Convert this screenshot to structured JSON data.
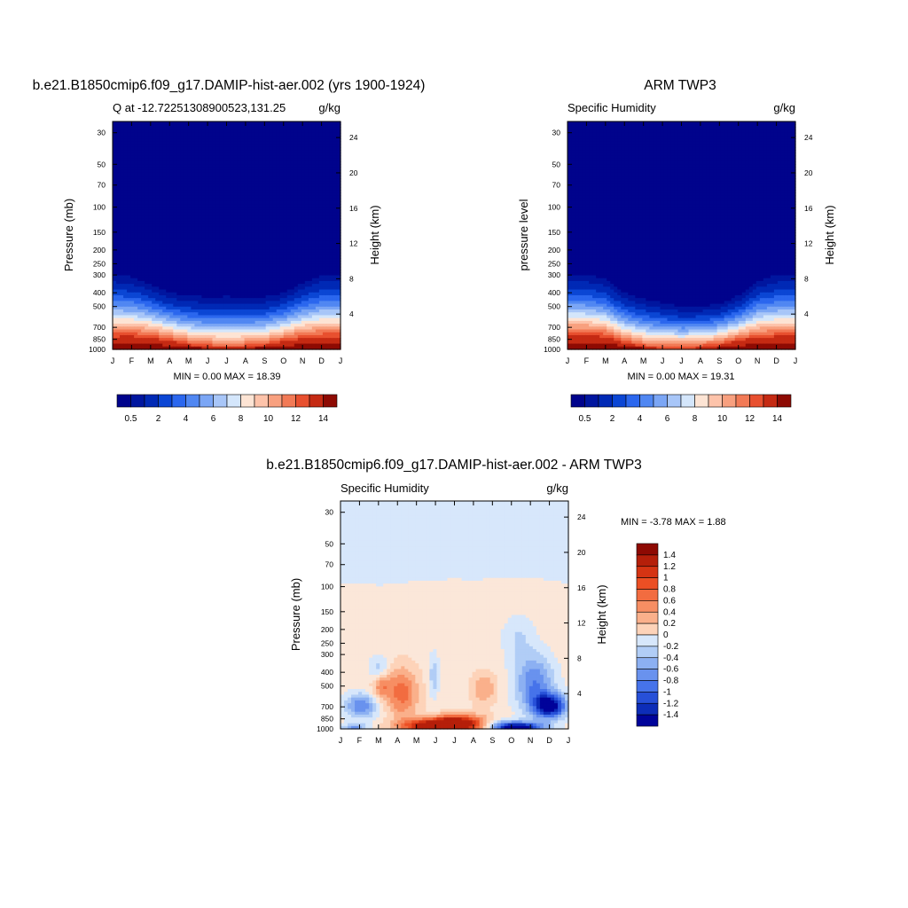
{
  "chart_data": [
    {
      "type": "contour",
      "title": "b.e21.B1850cmip6.f09_g17.DAMIP-hist-aer.002 (yrs 1900-1924)",
      "subtitle_left": "Q at -12.72251308900523,131.25",
      "subtitle_right": "g/kg",
      "ylabel": "Pressure (mb)",
      "ylabel_right": "Height (km)",
      "x_ticks": [
        "J",
        "F",
        "M",
        "A",
        "M",
        "J",
        "J",
        "A",
        "S",
        "O",
        "N",
        "D",
        "J"
      ],
      "p_ticks": [
        30,
        50,
        70,
        100,
        150,
        200,
        250,
        300,
        400,
        500,
        700,
        850,
        1000
      ],
      "z_ticks": [
        24,
        20,
        16,
        12,
        8,
        4
      ],
      "ylim": [
        1000,
        25
      ],
      "stats": "MIN =   0.00 MAX =  18.39",
      "levels": [
        0.5,
        1,
        2,
        3,
        4,
        5,
        6,
        7,
        8,
        9,
        10,
        11,
        12,
        13,
        14
      ],
      "colorbar_labels": [
        "0.5",
        "2",
        "4",
        "6",
        "8",
        "10",
        "12",
        "14"
      ],
      "profile_top_p": [
        300,
        310,
        350,
        400,
        420,
        430,
        425,
        430,
        430,
        400,
        340,
        300,
        300
      ],
      "profile_sfc_p": [
        820,
        820,
        840,
        880,
        930,
        960,
        975,
        965,
        940,
        890,
        850,
        830,
        820
      ]
    },
    {
      "type": "contour",
      "title": "ARM TWP3",
      "subtitle_left": "Specific Humidity",
      "subtitle_right": "g/kg",
      "ylabel": "pressure level",
      "ylabel_right": "Height (km)",
      "x_ticks": [
        "J",
        "F",
        "M",
        "A",
        "M",
        "J",
        "J",
        "A",
        "S",
        "O",
        "N",
        "D",
        "J"
      ],
      "p_ticks": [
        30,
        50,
        70,
        100,
        150,
        200,
        250,
        300,
        400,
        500,
        700,
        850,
        1000
      ],
      "z_ticks": [
        24,
        20,
        16,
        12,
        8,
        4
      ],
      "ylim": [
        1000,
        25
      ],
      "stats": "MIN =   0.00 MAX =  19.31",
      "levels": [
        0.5,
        1,
        2,
        3,
        4,
        5,
        6,
        7,
        8,
        9,
        10,
        11,
        12,
        13,
        14
      ],
      "colorbar_labels": [
        "0.5",
        "2",
        "4",
        "6",
        "8",
        "10",
        "12",
        "14"
      ],
      "profile_top_p": [
        300,
        300,
        320,
        400,
        440,
        470,
        500,
        500,
        480,
        420,
        330,
        300,
        300
      ],
      "profile_sfc_p": [
        800,
        800,
        820,
        900,
        960,
        985,
        995,
        980,
        950,
        880,
        830,
        810,
        800
      ]
    },
    {
      "type": "contour",
      "title": "b.e21.B1850cmip6.f09_g17.DAMIP-hist-aer.002 - ARM TWP3",
      "subtitle_left": "Specific Humidity",
      "subtitle_right": "g/kg",
      "ylabel": "Pressure (mb)",
      "ylabel_right": "Height (km)",
      "x_ticks": [
        "J",
        "F",
        "M",
        "A",
        "M",
        "J",
        "J",
        "A",
        "S",
        "O",
        "N",
        "D",
        "J"
      ],
      "p_ticks": [
        30,
        50,
        70,
        100,
        150,
        200,
        250,
        300,
        400,
        500,
        700,
        850,
        1000
      ],
      "z_ticks": [
        24,
        20,
        16,
        12,
        8,
        4
      ],
      "ylim": [
        1000,
        25
      ],
      "stats": "MIN =  -3.78 MAX =   1.88",
      "levels": [
        -1.4,
        -1.2,
        -1,
        -0.8,
        -0.6,
        -0.4,
        -0.2,
        0,
        0.2,
        0.4,
        0.6,
        0.8,
        1,
        1.2,
        1.4
      ],
      "colorbar_labels": [
        "1.4",
        "1.2",
        "1",
        "0.8",
        "0.6",
        "0.4",
        "0.2",
        "0",
        "-0.2",
        "-0.4",
        "-0.6",
        "-0.8",
        "-1",
        "-1.2",
        "-1.4"
      ],
      "zero_boundary_p": [
        95,
        95,
        98,
        95,
        92,
        90,
        88,
        90,
        88,
        85,
        87,
        90,
        95
      ]
    }
  ],
  "palettes": {
    "absolute": [
      "#00038c",
      "#00169f",
      "#0029b5",
      "#0b46d4",
      "#2b67ee",
      "#5087f2",
      "#7ba6f5",
      "#a8c6f8",
      "#d4e6fb",
      "#fde4d4",
      "#fdc3aa",
      "#f8a07f",
      "#f27a56",
      "#e8502f",
      "#c52a13",
      "#8e0a03"
    ],
    "diff": [
      "#8e0a03",
      "#b51f0a",
      "#d53413",
      "#ec4f24",
      "#f26c40",
      "#f78e63",
      "#fab08b",
      "#fdd3b9",
      "#fbe7d9",
      "#d7e7fb",
      "#b1cdf6",
      "#8cb0f2",
      "#6992ee",
      "#4673ea",
      "#2750d8",
      "#0d2db8",
      "#00039a"
    ]
  }
}
